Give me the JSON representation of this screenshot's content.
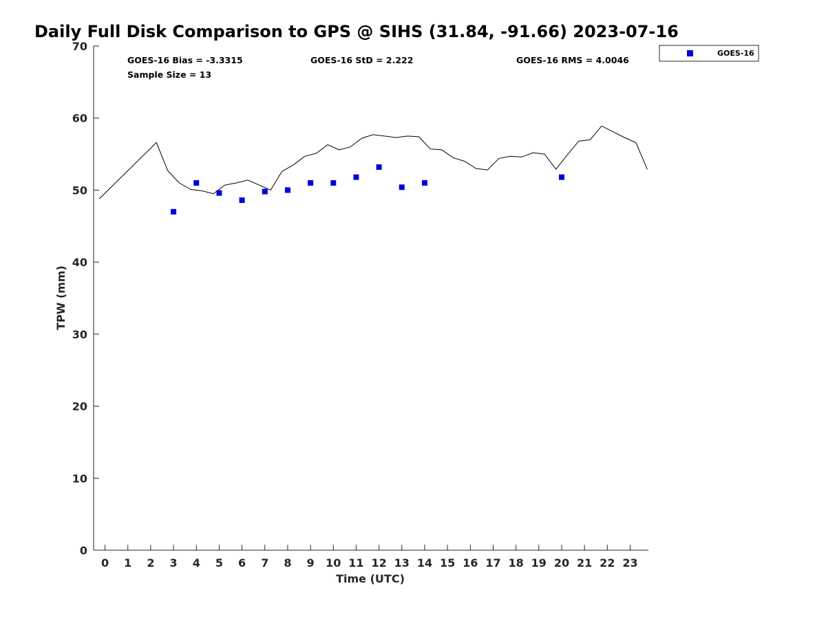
{
  "chart_data": {
    "type": "scatter",
    "title": "Daily Full Disk Comparison to GPS @ SIHS (31.84, -91.66) 2023-07-16",
    "xlabel": "Time (UTC)",
    "ylabel": "TPW (mm)",
    "xlim": [
      -0.5,
      23.8
    ],
    "ylim": [
      0,
      70
    ],
    "x_ticks": [
      0,
      1,
      2,
      3,
      4,
      5,
      6,
      7,
      8,
      9,
      10,
      11,
      12,
      13,
      14,
      15,
      16,
      17,
      18,
      19,
      20,
      21,
      22,
      23
    ],
    "y_ticks": [
      0,
      10,
      20,
      30,
      40,
      50,
      60,
      70
    ],
    "grid": false,
    "legend_position": "outside-top-right",
    "stats": {
      "bias": "GOES-16 Bias = -3.3315",
      "std": "GOES-16 StD = 2.222",
      "rms": "GOES-16 RMS = 4.0046",
      "sample_size": "Sample Size = 13"
    },
    "series": [
      {
        "name": "GOES-16",
        "kind": "scatter",
        "marker": "square",
        "color": "#0000dd",
        "x": [
          3,
          4,
          5,
          6,
          7,
          8,
          9,
          10,
          11,
          12,
          13,
          14,
          20
        ],
        "y": [
          47.0,
          51.0,
          49.6,
          48.6,
          49.8,
          50.0,
          51.0,
          51.0,
          51.8,
          53.2,
          50.4,
          51.0,
          51.8
        ]
      },
      {
        "kind": "line",
        "color": "#000000",
        "x": [
          -0.25,
          2.25,
          2.75,
          3.25,
          3.75,
          4.25,
          4.75,
          5.25,
          5.75,
          6.25,
          6.75,
          7.25,
          7.75,
          8.25,
          8.75,
          9.25,
          9.75,
          10.25,
          10.75,
          11.25,
          11.75,
          12.25,
          12.75,
          13.25,
          13.75,
          14.25,
          14.75,
          15.25,
          15.75,
          16.25,
          16.75,
          17.25,
          17.75,
          18.25,
          18.75,
          19.25,
          19.75,
          20.25,
          20.75,
          21.25,
          21.75,
          22.25,
          22.75,
          23.25,
          23.75
        ],
        "y": [
          48.8,
          56.6,
          52.7,
          51.0,
          50.1,
          49.9,
          49.5,
          50.7,
          51.0,
          51.4,
          50.7,
          50.0,
          52.6,
          53.5,
          54.7,
          55.1,
          56.3,
          55.6,
          56.0,
          57.2,
          57.7,
          57.5,
          57.3,
          57.5,
          57.4,
          55.7,
          55.6,
          54.5,
          54.0,
          53.0,
          52.8,
          54.4,
          54.7,
          54.6,
          55.2,
          55.0,
          52.9,
          54.9,
          56.8,
          57.0,
          58.9,
          58.1,
          57.3,
          56.6,
          52.9
        ]
      }
    ]
  }
}
